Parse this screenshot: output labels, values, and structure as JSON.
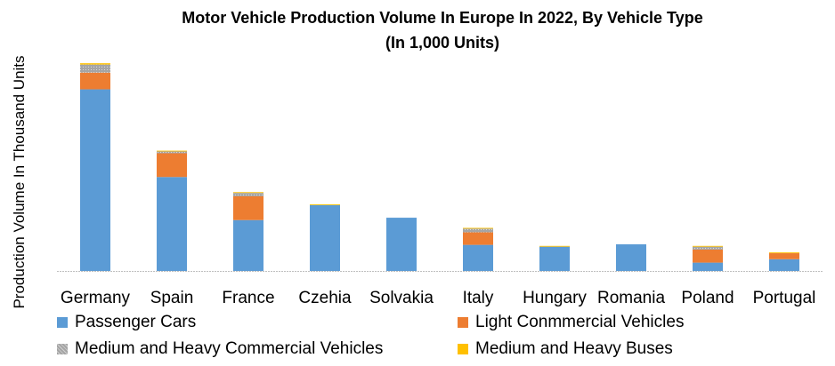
{
  "chart_data": {
    "type": "bar",
    "stacked": true,
    "title": "Motor Vehicle Production Volume In Europe In 2022, By Vehicle Type",
    "subtitle": "(In 1,000 Units)",
    "xlabel": "",
    "ylabel": "Production Volume In Thousand Units",
    "ylim": [
      0,
      4000
    ],
    "grid": false,
    "legend": "bottom",
    "categories": [
      "Germany",
      "Spain",
      "France",
      "Czehia",
      "Solvakia",
      "Italy",
      "Hungary",
      "Romania",
      "Poland",
      "Portugal"
    ],
    "series": [
      {
        "name": "Passenger Cars",
        "color": "#5b9bd5",
        "values": [
          3480,
          1800,
          975,
          1260,
          1020,
          500,
          465,
          510,
          160,
          225
        ]
      },
      {
        "name": "Light Conmmercial Vehicles",
        "color": "#ed7d31",
        "values": [
          320,
          455,
          455,
          0,
          0,
          240,
          0,
          0,
          250,
          115
        ]
      },
      {
        "name": "Medium and Heavy Commercial Vehicles",
        "color": "#a5a5a5",
        "values": [
          155,
          35,
          65,
          0,
          0,
          70,
          0,
          0,
          55,
          0
        ]
      },
      {
        "name": "Medium and Heavy Buses",
        "color": "#ffc000",
        "values": [
          25,
          15,
          15,
          15,
          0,
          15,
          15,
          0,
          15,
          15
        ]
      }
    ]
  }
}
